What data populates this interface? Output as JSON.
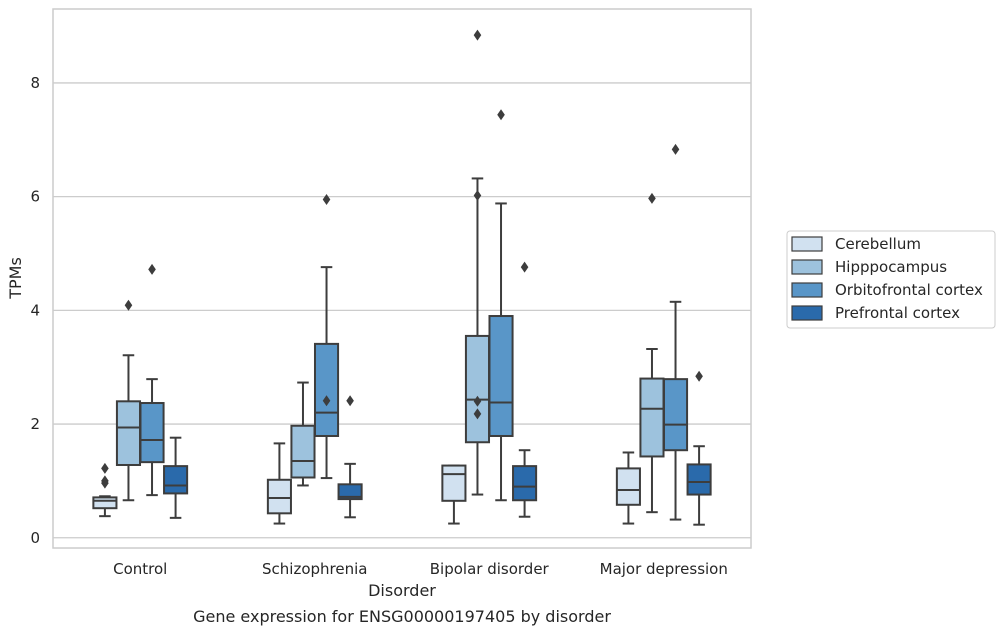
{
  "chart_data": {
    "type": "boxplot",
    "title": "",
    "caption": "Gene expression for ENSG00000197405 by disorder",
    "xlabel": "Disorder",
    "ylabel": "TPMs",
    "ylim": [
      -0.18,
      9.3
    ],
    "yticks": [
      0,
      2,
      4,
      6,
      8
    ],
    "grid": "horizontal",
    "legend_position": "right",
    "categories": [
      "Control",
      "Schizophrenia",
      "Bipolar disorder",
      "Major depression"
    ],
    "series": [
      {
        "name": "Cerebellum",
        "color": "#d1e1f0",
        "boxes": [
          {
            "whisker_low": 0.38,
            "q1": 0.52,
            "median": 0.65,
            "q3": 0.71,
            "whisker_high": 0.73,
            "outliers": [
              1.0,
              0.96,
              1.22
            ]
          },
          {
            "whisker_low": 0.25,
            "q1": 0.43,
            "median": 0.7,
            "q3": 1.02,
            "whisker_high": 1.66,
            "outliers": []
          },
          {
            "whisker_low": 0.25,
            "q1": 0.65,
            "median": 1.12,
            "q3": 1.27,
            "whisker_high": 1.27,
            "outliers": []
          },
          {
            "whisker_low": 0.25,
            "q1": 0.58,
            "median": 0.84,
            "q3": 1.22,
            "whisker_high": 1.5,
            "outliers": []
          }
        ]
      },
      {
        "name": "Hipppocampus",
        "color": "#9dc2dd",
        "boxes": [
          {
            "whisker_low": 0.66,
            "q1": 1.28,
            "median": 1.94,
            "q3": 2.4,
            "whisker_high": 3.21,
            "outliers": [
              4.09
            ]
          },
          {
            "whisker_low": 0.92,
            "q1": 1.06,
            "median": 1.35,
            "q3": 1.97,
            "whisker_high": 2.73,
            "outliers": []
          },
          {
            "whisker_low": 0.76,
            "q1": 1.68,
            "median": 2.43,
            "q3": 3.55,
            "whisker_high": 6.32,
            "outliers": [
              2.4,
              2.18,
              6.02,
              8.84
            ]
          },
          {
            "whisker_low": 0.45,
            "q1": 1.43,
            "median": 2.27,
            "q3": 2.8,
            "whisker_high": 3.32,
            "outliers": [
              5.97
            ]
          }
        ]
      },
      {
        "name": "Orbitofrontal cortex",
        "color": "#5996c8",
        "boxes": [
          {
            "whisker_low": 0.75,
            "q1": 1.33,
            "median": 1.72,
            "q3": 2.37,
            "whisker_high": 2.79,
            "outliers": [
              4.72
            ]
          },
          {
            "whisker_low": 1.05,
            "q1": 1.79,
            "median": 2.2,
            "q3": 3.41,
            "whisker_high": 4.76,
            "outliers": [
              5.95,
              2.41
            ]
          },
          {
            "whisker_low": 0.66,
            "q1": 1.79,
            "median": 2.38,
            "q3": 3.9,
            "whisker_high": 5.88,
            "outliers": [
              7.44
            ]
          },
          {
            "whisker_low": 0.32,
            "q1": 1.54,
            "median": 1.99,
            "q3": 2.79,
            "whisker_high": 4.15,
            "outliers": [
              6.83
            ]
          }
        ]
      },
      {
        "name": "Prefrontal cortex",
        "color": "#2a6aab",
        "boxes": [
          {
            "whisker_low": 0.35,
            "q1": 0.78,
            "median": 0.92,
            "q3": 1.26,
            "whisker_high": 1.76,
            "outliers": []
          },
          {
            "whisker_low": 0.36,
            "q1": 0.68,
            "median": 0.72,
            "q3": 0.94,
            "whisker_high": 1.3,
            "outliers": [
              2.41
            ]
          },
          {
            "whisker_low": 0.37,
            "q1": 0.66,
            "median": 0.9,
            "q3": 1.26,
            "whisker_high": 1.54,
            "outliers": [
              4.76
            ]
          },
          {
            "whisker_low": 0.23,
            "q1": 0.76,
            "median": 0.98,
            "q3": 1.29,
            "whisker_high": 1.61,
            "outliers": [
              2.84
            ]
          }
        ]
      }
    ]
  }
}
